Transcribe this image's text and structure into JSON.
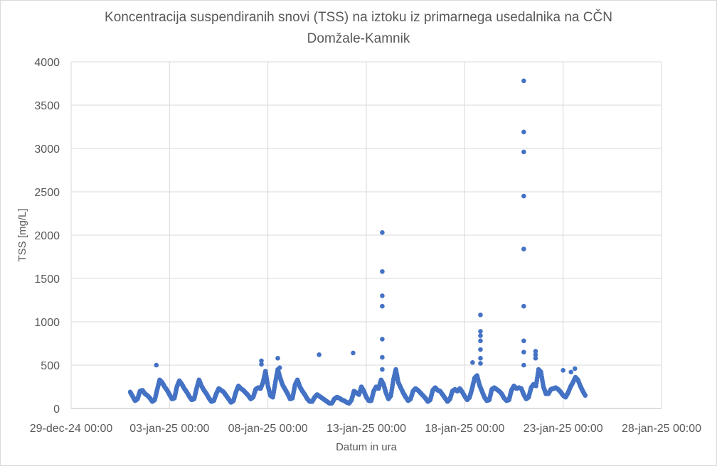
{
  "chart_data": {
    "type": "scatter",
    "title": "Koncentracija suspendiranih snovi (TSS) na iztoku iz primarnega usedalnika na CČN",
    "title_line2": "Domžale-Kamnik",
    "xlabel": "Datum in ura",
    "ylabel": "TSS [mg/L]",
    "x_units": "days since 29-dec-24 00:00",
    "xlim": [
      0,
      30
    ],
    "ylim": [
      0,
      4000
    ],
    "grid": true,
    "color": "#4472C4",
    "x_ticks": [
      {
        "value": 0,
        "label": "29-dec-24 00:00"
      },
      {
        "value": 5,
        "label": "03-jan-25 00:00"
      },
      {
        "value": 10,
        "label": "08-jan-25 00:00"
      },
      {
        "value": 15,
        "label": "13-jan-25 00:00"
      },
      {
        "value": 20,
        "label": "18-jan-25 00:00"
      },
      {
        "value": 25,
        "label": "23-jan-25 00:00"
      },
      {
        "value": 30,
        "label": "28-jan-25 00:00"
      }
    ],
    "y_ticks": [
      {
        "value": 0,
        "label": "0"
      },
      {
        "value": 500,
        "label": "500"
      },
      {
        "value": 1000,
        "label": "1000"
      },
      {
        "value": 1500,
        "label": "1500"
      },
      {
        "value": 2000,
        "label": "2000"
      },
      {
        "value": 2500,
        "label": "2500"
      },
      {
        "value": 3000,
        "label": "3000"
      },
      {
        "value": 3500,
        "label": "3500"
      },
      {
        "value": 4000,
        "label": "4000"
      }
    ],
    "regular_series": {
      "start_day": 3.0,
      "step_hours": 3,
      "values": [
        190,
        140,
        90,
        110,
        200,
        210,
        170,
        150,
        120,
        80,
        100,
        220,
        330,
        300,
        250,
        210,
        160,
        110,
        120,
        250,
        320,
        280,
        230,
        190,
        140,
        100,
        110,
        230,
        330,
        260,
        210,
        170,
        120,
        80,
        90,
        170,
        230,
        210,
        190,
        150,
        110,
        70,
        90,
        190,
        260,
        230,
        210,
        180,
        150,
        110,
        130,
        220,
        240,
        230,
        300,
        430,
        260,
        150,
        130,
        300,
        450,
        350,
        270,
        220,
        170,
        110,
        120,
        270,
        330,
        250,
        200,
        160,
        110,
        80,
        80,
        130,
        160,
        140,
        120,
        100,
        80,
        60,
        60,
        110,
        130,
        120,
        100,
        90,
        70,
        60,
        100,
        200,
        180,
        160,
        250,
        200,
        130,
        90,
        90,
        200,
        250,
        230,
        330,
        280,
        180,
        110,
        150,
        330,
        450,
        300,
        240,
        180,
        130,
        90,
        110,
        200,
        230,
        210,
        180,
        150,
        120,
        80,
        100,
        210,
        240,
        210,
        200,
        160,
        120,
        80,
        110,
        200,
        220,
        200,
        230,
        190,
        140,
        100,
        130,
        230,
        350,
        380,
        270,
        200,
        130,
        90,
        100,
        220,
        240,
        220,
        200,
        170,
        120,
        90,
        100,
        210,
        260,
        230,
        240,
        230,
        160,
        110,
        130,
        240,
        280,
        260,
        450,
        420,
        250,
        170,
        170,
        220,
        230,
        240,
        220,
        190,
        150,
        130,
        180,
        250,
        300,
        360,
        330,
        260,
        200,
        150
      ]
    },
    "outliers": [
      [
        4.33,
        500
      ],
      [
        9.67,
        550
      ],
      [
        9.67,
        510
      ],
      [
        10.5,
        580
      ],
      [
        10.6,
        470
      ],
      [
        12.6,
        620
      ],
      [
        14.33,
        640
      ],
      [
        15.81,
        2030
      ],
      [
        15.81,
        1580
      ],
      [
        15.81,
        1300
      ],
      [
        15.81,
        1180
      ],
      [
        15.81,
        800
      ],
      [
        15.81,
        590
      ],
      [
        15.81,
        450
      ],
      [
        20.8,
        1080
      ],
      [
        20.8,
        890
      ],
      [
        20.8,
        840
      ],
      [
        20.8,
        780
      ],
      [
        20.8,
        680
      ],
      [
        20.8,
        580
      ],
      [
        20.8,
        520
      ],
      [
        20.4,
        530
      ],
      [
        23.0,
        3780
      ],
      [
        23.0,
        3190
      ],
      [
        23.0,
        2960
      ],
      [
        23.0,
        2450
      ],
      [
        23.0,
        1840
      ],
      [
        23.0,
        1180
      ],
      [
        23.0,
        780
      ],
      [
        23.0,
        650
      ],
      [
        23.0,
        500
      ],
      [
        23.6,
        660
      ],
      [
        23.6,
        620
      ],
      [
        23.6,
        580
      ],
      [
        25.0,
        440
      ],
      [
        25.6,
        460
      ],
      [
        25.4,
        420
      ]
    ]
  }
}
